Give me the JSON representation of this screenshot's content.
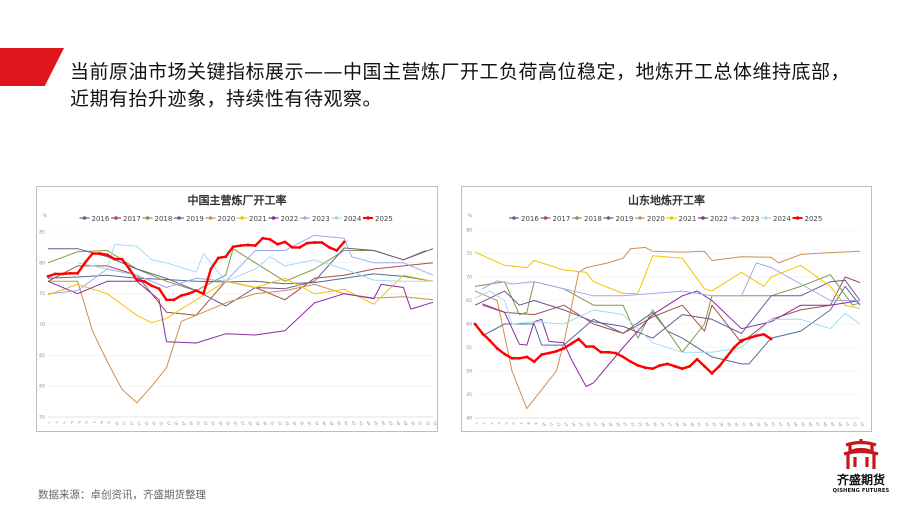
{
  "slide": {
    "title": "当前原油市场关键指标展示——中国主营炼厂开工负荷高位稳定，地炼开工总体维持底部，近期有抬升迹象，持续性有待观察。",
    "source": "数据来源：卓创资讯，齐盛期货整理",
    "logo": {
      "name_cn": "齐盛期货",
      "name_en": "QISHENG FUTURES",
      "color": "#c8161d"
    },
    "accent_color": "#e0161d"
  },
  "chart_data": [
    {
      "type": "line",
      "title": "中国主营炼厂开工率",
      "ylabel": "%",
      "xlabel": "",
      "ylim": [
        55,
        85
      ],
      "yticks": [
        55,
        60,
        65,
        70,
        75,
        80,
        85
      ],
      "xlim": [
        1,
        53
      ],
      "xticks": [
        1,
        2,
        3,
        4,
        5,
        6,
        7,
        8,
        9,
        10,
        11,
        12,
        13,
        14,
        15,
        16,
        17,
        18,
        19,
        20,
        21,
        22,
        23,
        24,
        25,
        26,
        27,
        28,
        29,
        30,
        31,
        32,
        33,
        34,
        35,
        36,
        37,
        38,
        39,
        40,
        41,
        42,
        43,
        44,
        45,
        46,
        47,
        48,
        49,
        50,
        51,
        52,
        53
      ],
      "grid": "horizontal",
      "legend": "top",
      "series": [
        {
          "name": "2016",
          "color": "#4f6d9a",
          "x": [
            1,
            5,
            9,
            13,
            17,
            21,
            25,
            29,
            33,
            37,
            41,
            45,
            49,
            53
          ],
          "values": [
            77.5,
            77.7,
            78,
            77.5,
            77.3,
            77,
            76.9,
            77,
            76.6,
            76.8,
            77.5,
            78.2,
            77.8,
            77
          ]
        },
        {
          "name": "2017",
          "color": "#a0504a",
          "x": [
            1,
            5,
            9,
            13,
            17,
            21,
            25,
            29,
            33,
            37,
            41,
            45,
            49,
            53
          ],
          "values": [
            77,
            79.5,
            79.5,
            78,
            72,
            71.5,
            77,
            76,
            74,
            77.5,
            78,
            79,
            79.5,
            80
          ]
        },
        {
          "name": "2018",
          "color": "#7f9a48",
          "x": [
            1,
            5,
            9,
            13,
            17,
            21,
            25,
            26,
            29,
            33,
            37,
            41,
            45,
            49,
            52
          ],
          "values": [
            80,
            81.8,
            82,
            79,
            77,
            75.5,
            78,
            82.3,
            80,
            77,
            79,
            82,
            82,
            80.5,
            82
          ]
        },
        {
          "name": "2019",
          "color": "#6a5890",
          "x": [
            1,
            5,
            9,
            13,
            17,
            21,
            25,
            29,
            33,
            37,
            41,
            45,
            49,
            53
          ],
          "values": [
            82.3,
            82.3,
            81,
            79,
            77.5,
            75.5,
            73,
            76,
            75.8,
            77,
            82.4,
            82,
            80.5,
            82.3
          ]
        },
        {
          "name": "2020",
          "color": "#d08f50",
          "x": [
            1,
            5,
            7,
            9,
            11,
            13,
            15,
            17,
            19,
            21,
            25,
            29,
            33,
            37,
            41,
            45,
            49,
            53
          ],
          "values": [
            77,
            77,
            69,
            64,
            59.5,
            57.3,
            60,
            63,
            70.5,
            71.5,
            73.5,
            75,
            75.5,
            76.5,
            75,
            74.3,
            74.5,
            74
          ]
        },
        {
          "name": "2021",
          "color": "#f5c400",
          "x": [
            1,
            5,
            9,
            13,
            15,
            17,
            21,
            25,
            29,
            33,
            37,
            41,
            45,
            49,
            53
          ],
          "values": [
            74.8,
            76.5,
            75,
            71.5,
            70.3,
            71,
            74,
            77,
            76,
            77.5,
            75,
            75.7,
            73.3,
            78,
            77
          ]
        },
        {
          "name": "2022",
          "color": "#8a2b9a",
          "x": [
            1,
            5,
            9,
            13,
            16,
            17,
            21,
            25,
            29,
            33,
            37,
            41,
            45,
            46,
            49,
            50,
            53
          ],
          "values": [
            77,
            75,
            77,
            77,
            74,
            67.2,
            67,
            68.5,
            68.3,
            69,
            73.5,
            75,
            74.2,
            76.5,
            76,
            72.5,
            73.6
          ]
        },
        {
          "name": "2023",
          "color": "#9da9f0",
          "x": [
            1,
            5,
            9,
            13,
            17,
            21,
            25,
            29,
            33,
            37,
            38,
            41,
            42,
            45,
            49,
            53
          ],
          "values": [
            75,
            75.5,
            79,
            78,
            76,
            77.5,
            77,
            82,
            82,
            84.5,
            84.3,
            84,
            81,
            80,
            80,
            78
          ]
        },
        {
          "name": "2024",
          "color": "#9fdcf5",
          "x": [
            5,
            9,
            10,
            13,
            15,
            17,
            21,
            22,
            25,
            29,
            31,
            33,
            37,
            41,
            45,
            49,
            53
          ],
          "values": [
            80,
            79,
            83,
            82.7,
            80.5,
            80,
            78.5,
            81.5,
            77,
            79,
            81,
            79.5,
            80.5,
            79,
            77.2,
            77,
            77
          ]
        },
        {
          "name": "2025",
          "color": "#ff0000",
          "x": [
            1,
            2,
            3,
            4,
            5,
            6,
            7,
            8,
            9,
            10,
            11,
            12,
            13,
            14,
            15,
            16,
            17,
            18,
            19,
            20,
            21,
            22,
            23,
            24,
            25,
            26,
            27,
            28,
            29,
            30,
            31,
            32,
            33,
            34,
            35,
            36,
            37,
            38,
            39,
            40,
            41
          ],
          "values": [
            77.8,
            78.2,
            78.2,
            78.3,
            78.3,
            80,
            81.5,
            81.5,
            81.3,
            80.6,
            80.6,
            79,
            77.2,
            77,
            76.3,
            75.8,
            74,
            74,
            74.7,
            75,
            75.5,
            75,
            79,
            80.8,
            81,
            82.6,
            82.8,
            82.9,
            82.8,
            84,
            83.8,
            83,
            83.4,
            82.5,
            82.5,
            83.2,
            83.3,
            83.3,
            82.5,
            82,
            83.4
          ]
        }
      ]
    },
    {
      "type": "line",
      "title": "山东地炼开工率",
      "ylabel": "%",
      "xlabel": "",
      "ylim": [
        40,
        80
      ],
      "yticks": [
        40,
        45,
        50,
        55,
        60,
        65,
        70,
        75,
        80
      ],
      "xlim": [
        1,
        53
      ],
      "xticks": [
        1,
        2,
        3,
        4,
        5,
        6,
        7,
        8,
        9,
        10,
        11,
        12,
        13,
        14,
        15,
        16,
        17,
        18,
        19,
        20,
        21,
        22,
        23,
        24,
        25,
        26,
        27,
        28,
        29,
        30,
        31,
        32,
        33,
        34,
        35,
        36,
        37,
        38,
        39,
        40,
        41,
        42,
        43,
        44,
        45,
        46,
        47,
        48,
        49,
        50,
        51,
        52,
        53
      ],
      "grid": "horizontal",
      "legend": "top",
      "series": [
        {
          "name": "2016",
          "color": "#4f6d9a",
          "x": [
            2,
            5,
            9,
            10,
            13,
            17,
            21,
            25,
            27,
            29,
            33,
            37,
            38,
            41,
            45,
            49,
            51,
            53
          ],
          "values": [
            57.5,
            60,
            60,
            55.5,
            55.5,
            61,
            58,
            62.5,
            58.5,
            57,
            53,
            51.5,
            51.5,
            57,
            58.5,
            63,
            68,
            64
          ]
        },
        {
          "name": "2017",
          "color": "#a0504a",
          "x": [
            2,
            5,
            9,
            13,
            17,
            21,
            25,
            29,
            32,
            33,
            37,
            41,
            45,
            49,
            51,
            53
          ],
          "values": [
            64,
            62.5,
            62,
            64,
            60,
            58,
            61.5,
            64,
            58.5,
            64,
            56,
            61,
            63,
            64,
            70,
            68.8
          ]
        },
        {
          "name": "2018",
          "color": "#7f9a48",
          "x": [
            1,
            5,
            7,
            8,
            9,
            13,
            17,
            21,
            23,
            25,
            29,
            32,
            33,
            37,
            41,
            45,
            49,
            52,
            53
          ],
          "values": [
            68,
            69,
            62,
            62.5,
            69,
            67.5,
            64,
            64,
            57,
            63,
            54,
            60,
            66,
            66,
            66,
            68,
            70.5,
            64,
            64.5
          ]
        },
        {
          "name": "2019",
          "color": "#6a5890",
          "x": [
            1,
            5,
            7,
            9,
            13,
            17,
            21,
            25,
            29,
            33,
            37,
            41,
            45,
            49,
            51,
            53
          ],
          "values": [
            64,
            67,
            64,
            65,
            63,
            60.5,
            59.5,
            57,
            62,
            61,
            58,
            66,
            66,
            69,
            69.3,
            65
          ]
        },
        {
          "name": "2020",
          "color": "#d08f50",
          "x": [
            1,
            4,
            6,
            8,
            10,
            12,
            13,
            15,
            16,
            19,
            21,
            22,
            24,
            25,
            29,
            32,
            33,
            37,
            41,
            42,
            45,
            49,
            53
          ],
          "values": [
            67,
            65,
            50,
            42,
            46,
            50,
            56,
            71,
            72,
            73,
            74,
            76,
            76.3,
            75.5,
            75.3,
            75.5,
            73.5,
            74.3,
            74.2,
            73,
            74.8,
            75.2,
            75.5
          ]
        },
        {
          "name": "2021",
          "color": "#f5c400",
          "x": [
            1,
            5,
            8,
            9,
            13,
            16,
            17,
            21,
            23,
            25,
            29,
            32,
            33,
            37,
            40,
            41,
            45,
            49,
            51,
            53
          ],
          "values": [
            75.3,
            72.5,
            72,
            73.5,
            71.5,
            71,
            69,
            66.5,
            66.5,
            74.5,
            74,
            67.5,
            67,
            71,
            68,
            70,
            72.5,
            68,
            64,
            63.3
          ]
        },
        {
          "name": "2022",
          "color": "#8a2b9a",
          "x": [
            2,
            5,
            7,
            8,
            9,
            10,
            11,
            13,
            14,
            16,
            17,
            21,
            25,
            29,
            31,
            33,
            37,
            41,
            45,
            49,
            53
          ],
          "values": [
            64.3,
            62.5,
            55.7,
            55.5,
            60.5,
            61,
            56.3,
            56,
            52.5,
            46.7,
            47.5,
            55,
            62,
            66,
            67,
            65,
            59,
            60.5,
            64,
            64,
            65
          ]
        },
        {
          "name": "2023",
          "color": "#9da9f0",
          "x": [
            2,
            4,
            6,
            9,
            13,
            17,
            21,
            25,
            29,
            33,
            37,
            39,
            41,
            45,
            49,
            53
          ],
          "values": [
            67.5,
            69.2,
            68.5,
            69,
            67.5,
            66,
            66,
            66.5,
            67,
            66,
            66,
            73,
            72,
            68.5,
            65,
            65
          ]
        },
        {
          "name": "2024",
          "color": "#9fdcf5",
          "x": [
            1,
            3,
            5,
            6,
            9,
            13,
            17,
            21,
            25,
            29,
            33,
            37,
            41,
            45,
            49,
            51,
            53
          ],
          "values": [
            65.5,
            67,
            65,
            60,
            60.5,
            60,
            63,
            62,
            56,
            54,
            54,
            55,
            61,
            61,
            59,
            62.3,
            60
          ]
        },
        {
          "name": "2025",
          "color": "#ff0000",
          "x": [
            1,
            2,
            3,
            4,
            5,
            6,
            7,
            8,
            9,
            10,
            11,
            12,
            13,
            14,
            15,
            16,
            17,
            18,
            19,
            20,
            21,
            22,
            23,
            24,
            25,
            26,
            27,
            28,
            29,
            30,
            31,
            32,
            33,
            34,
            35,
            36,
            37,
            38,
            39,
            40,
            41
          ],
          "values": [
            60,
            58,
            56.5,
            54.8,
            53.6,
            52.7,
            52.7,
            53,
            52,
            53.5,
            53.8,
            54.2,
            54.8,
            55.8,
            56.8,
            55.2,
            55.2,
            54,
            54,
            53.8,
            53,
            52,
            51.2,
            50.7,
            50.5,
            51.2,
            51.5,
            51,
            50.5,
            51,
            52.5,
            51,
            49.5,
            51,
            53,
            55,
            56.5,
            57,
            57.5,
            57.8,
            56.8
          ]
        }
      ]
    }
  ]
}
